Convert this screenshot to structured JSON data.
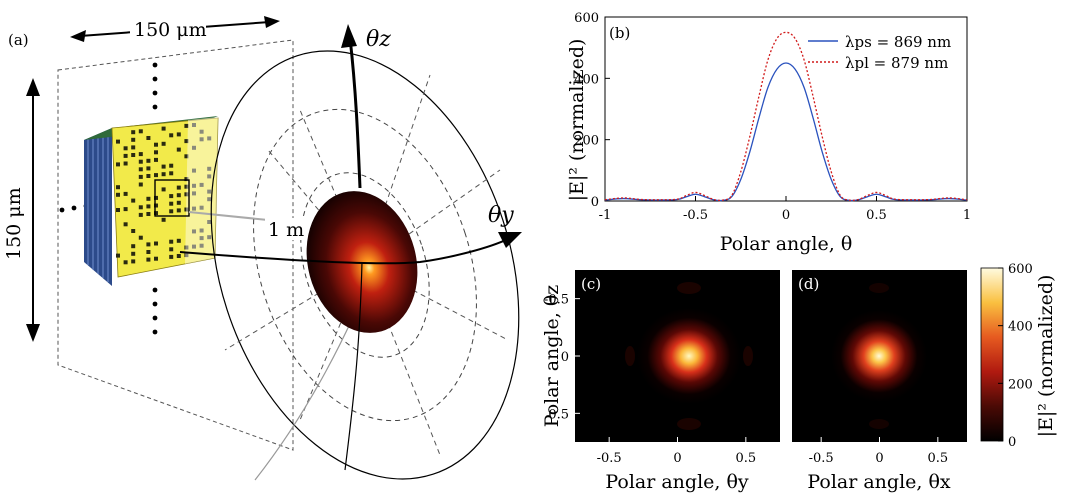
{
  "panel_a": {
    "label": "(a)",
    "width_label": "150 μm",
    "height_label": "150 μm",
    "distance_label": "1 m",
    "theta_z": "θz",
    "theta_y": "θy"
  },
  "colors": {
    "series1": "#2a52be",
    "series2": "#d11a1a",
    "metasurface": "#f2ea4a",
    "metasurface_side": "#2c4a8a"
  },
  "chart_data": [
    {
      "type": "line",
      "panel": "(b)",
      "xlabel": "Polar angle, θ",
      "ylabel": "|E|² (normalized)",
      "xlim": [
        -1,
        1
      ],
      "ylim": [
        0,
        600
      ],
      "xticks": [
        "-1",
        "-0.5",
        "0",
        "0.5",
        "1"
      ],
      "yticks": [
        "0",
        "200",
        "400",
        "600"
      ],
      "legend_position": "top-right",
      "series": [
        {
          "name": "λps = 869 nm",
          "style": "solid",
          "x": [
            -1.0,
            -0.9,
            -0.8,
            -0.7,
            -0.6,
            -0.55,
            -0.5,
            -0.45,
            -0.4,
            -0.35,
            -0.3,
            -0.25,
            -0.2,
            -0.15,
            -0.1,
            -0.05,
            0.0,
            0.05,
            0.1,
            0.15,
            0.2,
            0.25,
            0.3,
            0.35,
            0.4,
            0.45,
            0.5,
            0.55,
            0.6,
            0.7,
            0.8,
            0.9,
            1.0
          ],
          "y": [
            3,
            8,
            4,
            3,
            5,
            14,
            22,
            14,
            4,
            2,
            14,
            70,
            160,
            270,
            370,
            430,
            450,
            430,
            370,
            270,
            160,
            70,
            14,
            2,
            4,
            14,
            22,
            14,
            5,
            3,
            4,
            8,
            3
          ]
        },
        {
          "name": "λpl = 879 nm",
          "style": "dotted",
          "x": [
            -1.0,
            -0.9,
            -0.8,
            -0.7,
            -0.6,
            -0.55,
            -0.5,
            -0.45,
            -0.4,
            -0.35,
            -0.3,
            -0.25,
            -0.2,
            -0.15,
            -0.1,
            -0.05,
            0.0,
            0.05,
            0.1,
            0.15,
            0.2,
            0.25,
            0.3,
            0.35,
            0.4,
            0.45,
            0.5,
            0.55,
            0.6,
            0.7,
            0.8,
            0.9,
            1.0
          ],
          "y": [
            4,
            10,
            5,
            4,
            6,
            18,
            28,
            18,
            5,
            3,
            18,
            95,
            210,
            340,
            460,
            530,
            550,
            530,
            460,
            340,
            210,
            95,
            18,
            3,
            5,
            18,
            28,
            18,
            6,
            4,
            5,
            10,
            4
          ]
        }
      ]
    },
    {
      "type": "heatmap",
      "panel": "(c)",
      "xlabel": "Polar angle, θy",
      "ylabel": "Polar angle, θz",
      "xlim": [
        -0.75,
        0.75
      ],
      "ylim": [
        -0.75,
        0.75
      ],
      "xticks": [
        "-0.5",
        "0",
        "0.5"
      ],
      "yticks": [
        "-0.5",
        "0",
        "0.5"
      ],
      "peak": 450
    },
    {
      "type": "heatmap",
      "panel": "(d)",
      "xlabel": "Polar angle, θx",
      "xlim": [
        -0.75,
        0.75
      ],
      "ylim": [
        -0.75,
        0.75
      ],
      "xticks": [
        "-0.5",
        "0",
        "0.5"
      ],
      "peak": 550,
      "colorbar_label": "|E|² (normalized)",
      "colorbar_ticks": [
        "0",
        "200",
        "400",
        "600"
      ],
      "colorbar_range": [
        0,
        600
      ]
    }
  ]
}
